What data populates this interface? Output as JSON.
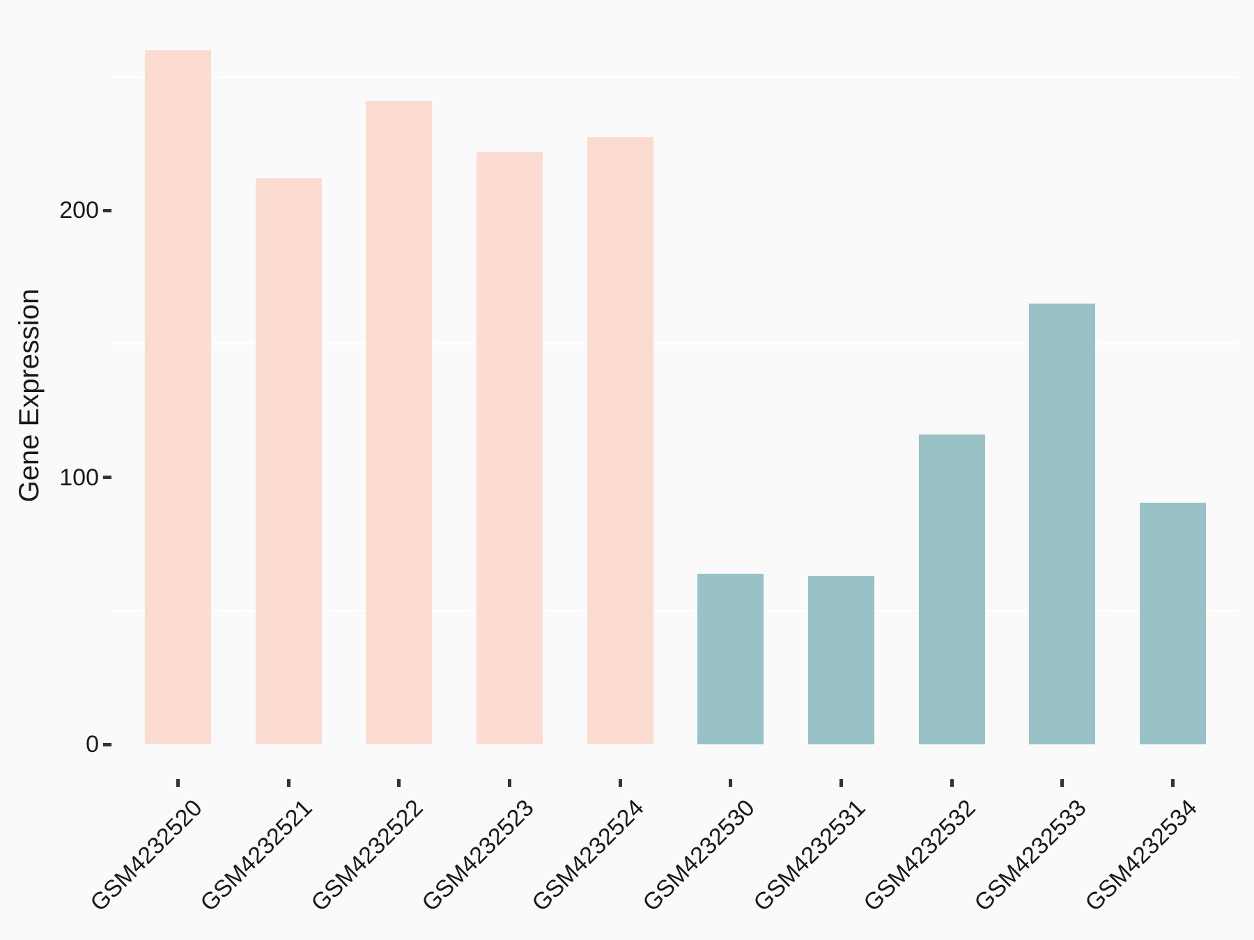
{
  "chart_data": {
    "type": "bar",
    "title": "",
    "xlabel": "",
    "ylabel": "Gene Expression",
    "categories": [
      "GSM4232520",
      "GSM4232521",
      "GSM4232522",
      "GSM4232523",
      "GSM4232524",
      "GSM4232530",
      "GSM4232531",
      "GSM4232532",
      "GSM4232533",
      "GSM4232534"
    ],
    "values": [
      260,
      212,
      241,
      222,
      227.5,
      64,
      63,
      116,
      165,
      90.5
    ],
    "bar_colors": [
      "#FCDCD0",
      "#FCDCD0",
      "#FCDCD0",
      "#FCDCD0",
      "#FCDCD0",
      "#98C2C6",
      "#98C2C6",
      "#98C2C6",
      "#98C2C6",
      "#98C2C6"
    ],
    "color_legend": {
      "pink_group_color": "#FCDCD0",
      "teal_group_color": "#98C2C6"
    },
    "yticks": [
      "0",
      "100",
      "200"
    ],
    "ytick_values": [
      0,
      100,
      200
    ],
    "minor_gridline_values": [
      50,
      150,
      250
    ],
    "ylim": [
      -13,
      273
    ],
    "grid": "minor-only",
    "legend": "none",
    "background_color": "#FAFAFA",
    "gridline_color": "#FFFFFF",
    "axis_tick_color": "#333333",
    "text_color": "#1A1A1A"
  }
}
